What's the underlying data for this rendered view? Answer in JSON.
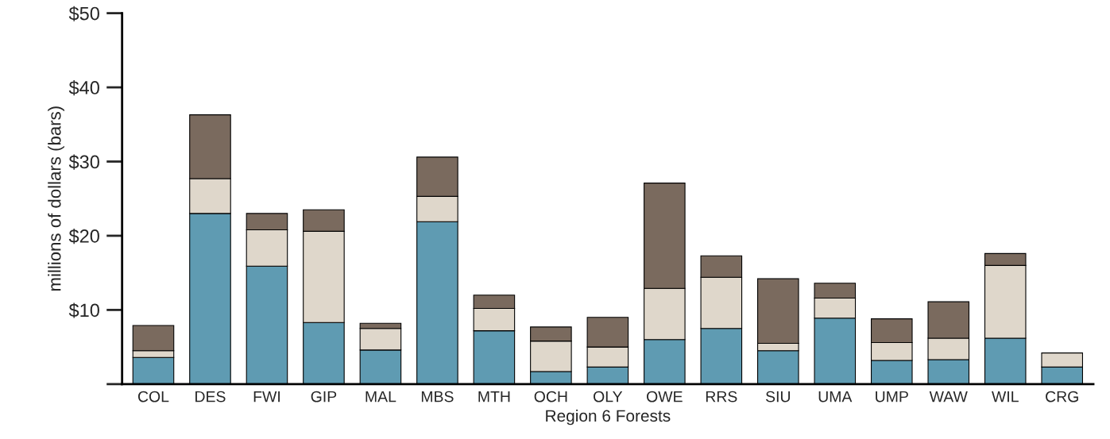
{
  "chart_data": {
    "type": "bar",
    "xlabel": "Region 6 Forests",
    "ylabel": "millions of dollars (bars)",
    "categories": [
      "COL",
      "DES",
      "FWI",
      "GIP",
      "MAL",
      "MBS",
      "MTH",
      "OCH",
      "OLY",
      "OWE",
      "RRS",
      "SIU",
      "UMA",
      "UMP",
      "WAW",
      "WIL",
      "CRG"
    ],
    "stacked": true,
    "series": [
      {
        "color": "#5f9bb2",
        "values": [
          3.6,
          23.0,
          15.9,
          8.3,
          4.6,
          21.9,
          7.2,
          1.7,
          2.3,
          6.0,
          7.5,
          4.5,
          8.9,
          3.2,
          3.3,
          6.2,
          2.3
        ]
      },
      {
        "color": "#dfd7cb",
        "values": [
          0.9,
          4.7,
          4.9,
          12.3,
          2.9,
          3.4,
          3.0,
          4.1,
          2.7,
          6.9,
          6.9,
          1.0,
          2.7,
          2.4,
          2.9,
          9.8,
          1.9
        ]
      },
      {
        "color": "#7a6a5e",
        "values": [
          3.4,
          8.6,
          2.2,
          2.9,
          0.7,
          5.3,
          1.8,
          1.9,
          4.0,
          14.2,
          2.9,
          8.7,
          2.0,
          3.2,
          4.9,
          1.6,
          null
        ]
      }
    ],
    "ylim": [
      0,
      50
    ],
    "yticks": [
      {
        "value": 0,
        "label": null
      },
      {
        "value": 10,
        "label": "$10"
      },
      {
        "value": 20,
        "label": "$20"
      },
      {
        "value": 30,
        "label": "$30"
      },
      {
        "value": 40,
        "label": "$40"
      },
      {
        "value": 50,
        "label": "$50"
      }
    ],
    "grid": false,
    "legend": false
  }
}
